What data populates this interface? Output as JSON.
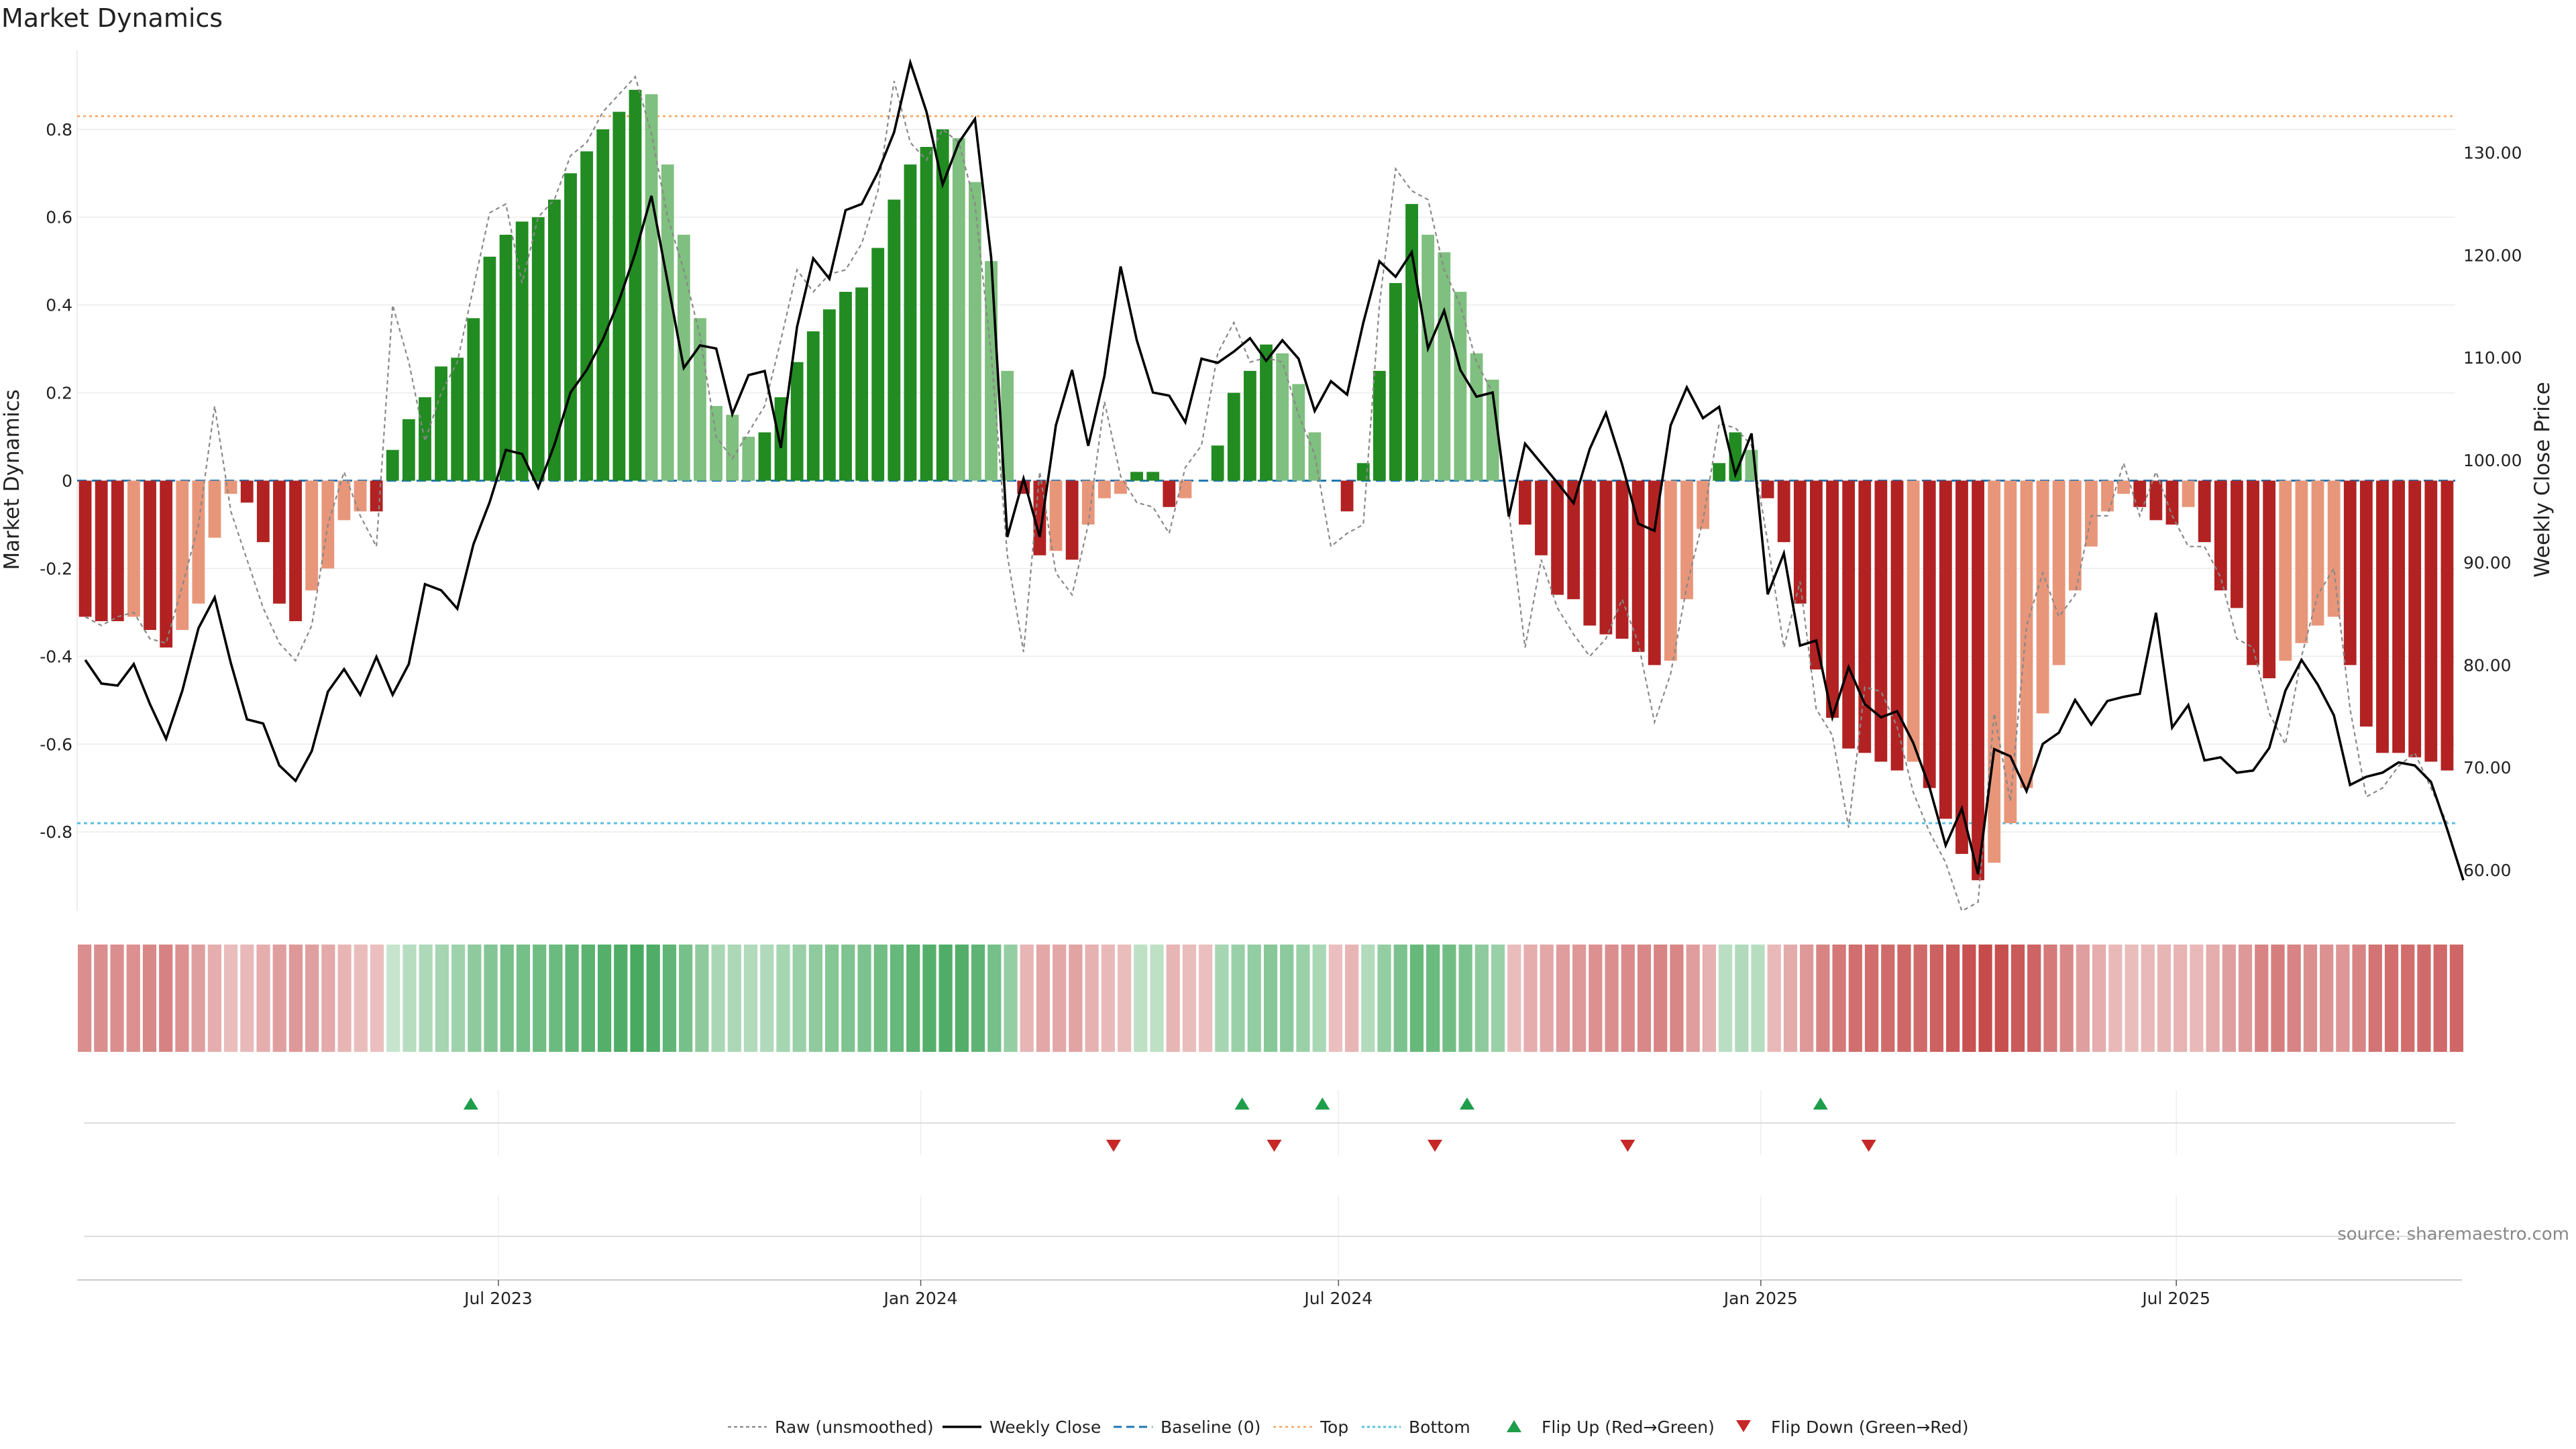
{
  "title": "Market Dynamics",
  "source": "source: sharemaestro.com",
  "colors": {
    "strong_green": "#228B22",
    "light_green": "#7FBF7F",
    "strong_red": "#B22222",
    "light_red": "#E8967A",
    "weekly_close": "#000000",
    "raw": "#888888",
    "baseline": "#1f77b4",
    "top": "#F4A460",
    "bottom": "#5BC0DE",
    "flip_up": "#1E9E4A",
    "flip_down": "#C62828"
  },
  "chart_data": {
    "type": "bar",
    "x_axis": {
      "type": "date",
      "start": "2023-01-02",
      "end": "2025-10-27",
      "ticks": [
        {
          "label": "Jul 2023",
          "date": "2023-07-01"
        },
        {
          "label": "Jan 2024",
          "date": "2024-01-01"
        },
        {
          "label": "Jul 2024",
          "date": "2024-07-01"
        },
        {
          "label": "Jan 2025",
          "date": "2025-01-01"
        },
        {
          "label": "Jul 2025",
          "date": "2025-07-01"
        }
      ]
    },
    "y_left": {
      "label": "Market Dynamics",
      "ylim": [
        -0.98,
        0.98
      ],
      "ticks": [
        "-0.8",
        "-0.6",
        "-0.4",
        "-0.2",
        "0",
        "0.2",
        "0.4",
        "0.6",
        "0.8"
      ]
    },
    "y_right": {
      "label": "Weekly Close Price",
      "ylim": [
        56,
        140
      ],
      "ticks": [
        "60.00",
        "70.00",
        "80.00",
        "90.00",
        "100.00",
        "110.00",
        "120.00",
        "130.00"
      ]
    },
    "levels": {
      "baseline": 0,
      "top": 0.83,
      "bottom": -0.78
    },
    "dynamics": [
      -0.31,
      -0.32,
      -0.32,
      -0.31,
      -0.34,
      -0.38,
      -0.34,
      -0.28,
      -0.13,
      -0.03,
      -0.05,
      -0.14,
      -0.28,
      -0.32,
      -0.25,
      -0.2,
      -0.09,
      -0.07,
      -0.07,
      0.07,
      0.14,
      0.19,
      0.26,
      0.28,
      0.37,
      0.51,
      0.56,
      0.59,
      0.6,
      0.64,
      0.7,
      0.75,
      0.8,
      0.84,
      0.89,
      0.88,
      0.72,
      0.56,
      0.37,
      0.17,
      0.15,
      0.1,
      0.11,
      0.19,
      0.27,
      0.34,
      0.39,
      0.43,
      0.44,
      0.53,
      0.64,
      0.72,
      0.76,
      0.8,
      0.78,
      0.68,
      0.5,
      0.25,
      -0.03,
      -0.17,
      -0.16,
      -0.18,
      -0.1,
      -0.04,
      -0.03,
      0.02,
      0.02,
      -0.06,
      -0.04,
      0,
      0.08,
      0.2,
      0.25,
      0.31,
      0.29,
      0.22,
      0.11,
      0,
      -0.07,
      0.04,
      0.25,
      0.45,
      0.63,
      0.56,
      0.52,
      0.43,
      0.29,
      0.23,
      0,
      -0.1,
      -0.17,
      -0.26,
      -0.27,
      -0.33,
      -0.35,
      -0.36,
      -0.39,
      -0.42,
      -0.41,
      -0.27,
      -0.11,
      0.04,
      0.11,
      0.07,
      -0.04,
      -0.14,
      -0.28,
      -0.43,
      -0.54,
      -0.61,
      -0.62,
      -0.64,
      -0.66,
      -0.64,
      -0.7,
      -0.77,
      -0.85,
      -0.91,
      -0.87,
      -0.78,
      -0.7,
      -0.53,
      -0.42,
      -0.25,
      -0.15,
      -0.07,
      -0.03,
      -0.06,
      -0.09,
      -0.1,
      -0.06,
      -0.14,
      -0.25,
      -0.29,
      -0.42,
      -0.45,
      -0.41,
      -0.37,
      -0.33,
      -0.31,
      -0.42,
      -0.56,
      -0.62,
      -0.62,
      -0.63,
      -0.64,
      -0.66
    ],
    "raw": [
      -0.31,
      -0.33,
      -0.31,
      -0.3,
      -0.36,
      -0.37,
      -0.24,
      -0.1,
      0.17,
      -0.07,
      -0.18,
      -0.29,
      -0.37,
      -0.41,
      -0.33,
      -0.1,
      0.02,
      -0.08,
      -0.15,
      0.4,
      0.27,
      0.09,
      0.2,
      0.27,
      0.44,
      0.61,
      0.63,
      0.45,
      0.6,
      0.64,
      0.74,
      0.77,
      0.84,
      0.88,
      0.92,
      0.79,
      0.6,
      0.48,
      0.33,
      0.1,
      0.05,
      0.11,
      0.17,
      0.32,
      0.48,
      0.43,
      0.47,
      0.48,
      0.54,
      0.66,
      0.91,
      0.77,
      0.73,
      0.8,
      0.77,
      0.63,
      0.29,
      -0.17,
      -0.39,
      0.02,
      -0.21,
      -0.26,
      -0.1,
      0.18,
      0.01,
      -0.05,
      -0.06,
      -0.12,
      0.03,
      0.08,
      0.29,
      0.36,
      0.27,
      0.28,
      0.27,
      0.15,
      0.06,
      -0.15,
      -0.12,
      -0.1,
      0.4,
      0.71,
      0.66,
      0.64,
      0.48,
      0.4,
      0.27,
      0.2,
      -0.07,
      -0.38,
      -0.18,
      -0.29,
      -0.35,
      -0.4,
      -0.36,
      -0.27,
      -0.37,
      -0.55,
      -0.44,
      -0.24,
      -0.09,
      0.13,
      0.12,
      0.08,
      -0.14,
      -0.38,
      -0.23,
      -0.52,
      -0.58,
      -0.79,
      -0.47,
      -0.48,
      -0.56,
      -0.71,
      -0.8,
      -0.87,
      -0.98,
      -0.96,
      -0.53,
      -0.73,
      -0.33,
      -0.21,
      -0.31,
      -0.26,
      -0.08,
      -0.08,
      0.04,
      -0.08,
      0.02,
      -0.08,
      -0.15,
      -0.15,
      -0.22,
      -0.36,
      -0.38,
      -0.53,
      -0.6,
      -0.4,
      -0.26,
      -0.2,
      -0.52,
      -0.72,
      -0.7,
      -0.65,
      -0.62,
      -0.7,
      -0.78
    ],
    "weekly_close": [
      80.5,
      78.2,
      78.0,
      80.1,
      76.2,
      72.8,
      77.5,
      83.6,
      86.6,
      80.2,
      74.7,
      74.3,
      70.2,
      68.7,
      71.6,
      77.4,
      79.6,
      77.1,
      80.8,
      77.1,
      80.1,
      87.9,
      87.3,
      85.5,
      91.8,
      95.9,
      101.0,
      100.6,
      97.3,
      101.5,
      106.6,
      108.8,
      111.8,
      115.6,
      120.2,
      125.8,
      117.4,
      109.0,
      111.2,
      110.9,
      104.5,
      108.3,
      108.7,
      101.2,
      113.0,
      119.7,
      117.7,
      124.4,
      125.0,
      128.1,
      132.0,
      138.8,
      134.0,
      126.9,
      131.0,
      133.3,
      119.8,
      92.5,
      98.2,
      92.5,
      103.4,
      108.8,
      101.4,
      108.2,
      118.9,
      111.7,
      106.6,
      106.3,
      103.7,
      109.9,
      109.5,
      110.6,
      111.9,
      109.7,
      111.7,
      109.9,
      104.8,
      107.7,
      106.4,
      113.4,
      119.4,
      117.9,
      120.3,
      110.9,
      114.6,
      108.8,
      106.2,
      106.6,
      94.5,
      101.6,
      99.7,
      97.8,
      95.8,
      101.1,
      104.6,
      99.6,
      93.8,
      93.1,
      103.4,
      107.1,
      104.1,
      105.2,
      98.6,
      102.6,
      86.9,
      90.9,
      81.9,
      82.4,
      74.9,
      79.8,
      76.2,
      74.9,
      75.5,
      72.4,
      68.1,
      62.4,
      66.0,
      59.6,
      71.8,
      71.1,
      67.7,
      72.3,
      73.4,
      76.6,
      74.2,
      76.5,
      76.9,
      77.2,
      85.1,
      73.9,
      76.1,
      70.7,
      71.0,
      69.5,
      69.7,
      71.9,
      77.5,
      80.5,
      78.1,
      75.1,
      68.3,
      69.1,
      69.5,
      70.5,
      70.2,
      68.6,
      64.0,
      59.0
    ],
    "heat_strip": [
      -0.52,
      -0.52,
      -0.52,
      -0.5,
      -0.55,
      -0.6,
      -0.5,
      -0.4,
      -0.3,
      -0.2,
      -0.22,
      -0.3,
      -0.4,
      -0.45,
      -0.4,
      -0.33,
      -0.25,
      -0.2,
      -0.18,
      0.1,
      0.2,
      0.25,
      0.3,
      0.35,
      0.45,
      0.52,
      0.58,
      0.6,
      0.62,
      0.66,
      0.72,
      0.76,
      0.8,
      0.84,
      0.88,
      0.84,
      0.72,
      0.58,
      0.45,
      0.28,
      0.26,
      0.22,
      0.24,
      0.3,
      0.38,
      0.44,
      0.5,
      0.54,
      0.56,
      0.62,
      0.7,
      0.76,
      0.8,
      0.84,
      0.82,
      0.74,
      0.6,
      0.4,
      -0.25,
      -0.35,
      -0.35,
      -0.37,
      -0.28,
      -0.22,
      -0.2,
      0.15,
      0.15,
      -0.25,
      -0.2,
      -0.18,
      0.3,
      0.38,
      0.42,
      0.48,
      0.46,
      0.38,
      0.28,
      -0.18,
      -0.25,
      0.22,
      0.42,
      0.56,
      0.7,
      0.66,
      0.62,
      0.55,
      0.45,
      0.38,
      -0.2,
      -0.3,
      -0.35,
      -0.42,
      -0.44,
      -0.5,
      -0.52,
      -0.54,
      -0.56,
      -0.58,
      -0.57,
      -0.42,
      -0.28,
      0.18,
      0.24,
      0.2,
      -0.22,
      -0.32,
      -0.44,
      -0.58,
      -0.66,
      -0.72,
      -0.73,
      -0.75,
      -0.78,
      -0.76,
      -0.82,
      -0.88,
      -0.93,
      -0.97,
      -0.94,
      -0.88,
      -0.8,
      -0.65,
      -0.55,
      -0.4,
      -0.3,
      -0.22,
      -0.2,
      -0.22,
      -0.25,
      -0.26,
      -0.22,
      -0.3,
      -0.4,
      -0.45,
      -0.58,
      -0.62,
      -0.58,
      -0.52,
      -0.48,
      -0.46,
      -0.58,
      -0.7,
      -0.74,
      -0.74,
      -0.75,
      -0.76,
      -0.78
    ],
    "flip_up_dates": [
      "2023-06-19",
      "2024-05-20",
      "2024-06-24",
      "2024-08-26",
      "2025-01-27"
    ],
    "flip_down_dates": [
      "2024-03-25",
      "2024-06-03",
      "2024-08-12",
      "2024-11-04",
      "2025-02-17"
    ],
    "legend": {
      "position": "bottom-center",
      "items": [
        {
          "key": "raw",
          "label": "Raw (unsmoothed)"
        },
        {
          "key": "weekly_close",
          "label": "Weekly Close"
        },
        {
          "key": "baseline",
          "label": "Baseline (0)"
        },
        {
          "key": "top",
          "label": "Top"
        },
        {
          "key": "bottom",
          "label": "Bottom"
        },
        {
          "key": "flip_up",
          "label": "Flip Up (Red→Green)"
        },
        {
          "key": "flip_down",
          "label": "Flip Down (Green→Red)"
        }
      ]
    }
  }
}
